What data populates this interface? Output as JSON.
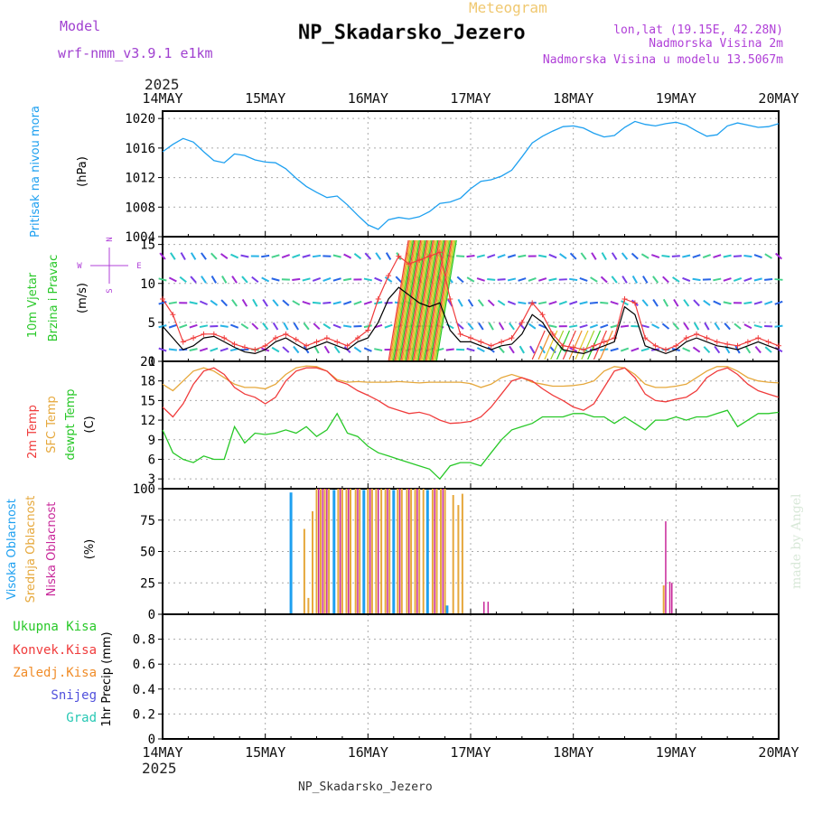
{
  "header": {
    "model_label": "Model",
    "model_name": "wrf-nmm_v3.9.1 e1km",
    "meteogram_label": "Meteogram",
    "station_title": "NP_Skadarsko_Jezero",
    "coords": "lon,lat (19.15E, 42.28N)",
    "altitude": "Nadmorska Visina 2m",
    "model_altitude": "Nadmorska Visina u modelu 13.5067m"
  },
  "axis": {
    "year_top": "2025",
    "year_bottom": "2025",
    "dates": [
      "14MAY",
      "15MAY",
      "16MAY",
      "17MAY",
      "18MAY",
      "19MAY",
      "20MAY"
    ]
  },
  "footer": {
    "station": "NP_Skadarsko_Jezero"
  },
  "watermark": "made by Angel",
  "colors": {
    "pressure": "#1ea0f0",
    "temp2m": "#f03c3c",
    "sfc_temp": "#e6a83c",
    "dewpt": "#28c828",
    "high_cloud": "#1ea0f0",
    "mid_cloud": "#e6a83c",
    "low_cloud": "#c8289a",
    "total_precip": "#28c828",
    "conv_precip": "#f03c3c",
    "frozen_precip": "#f08c28",
    "snow": "#5050dc",
    "graupel": "#28c8b4"
  },
  "chart_data": [
    {
      "type": "line",
      "panel": "pressure",
      "ylabels": [
        "Pritisak na nivou mora",
        "(hPa)"
      ],
      "ylim": [
        1004,
        1021
      ],
      "yticks": [
        1004,
        1008,
        1012,
        1016,
        1020
      ],
      "x_unit": "days from 14MAY 00Z",
      "series": [
        {
          "x": [
            0,
            0.1,
            0.2,
            0.3,
            0.4,
            0.5,
            0.6,
            0.7,
            0.8,
            0.9,
            1.0,
            1.1,
            1.2,
            1.3,
            1.4,
            1.5,
            1.6,
            1.7,
            1.8,
            1.9,
            2.0,
            2.1,
            2.2,
            2.3,
            2.4,
            2.5,
            2.6,
            2.7,
            2.8,
            2.9,
            3.0,
            3.1,
            3.2,
            3.3,
            3.4,
            3.5,
            3.6,
            3.7,
            3.8,
            3.9,
            4.0,
            4.1,
            4.2,
            4.3,
            4.4,
            4.5,
            4.6,
            4.7,
            4.8,
            4.9,
            5.0,
            5.1,
            5.2,
            5.3,
            5.4,
            5.5,
            5.6,
            5.7,
            5.8,
            5.9,
            6.0
          ],
          "values": [
            1015.5,
            1016.5,
            1017.3,
            1016.8,
            1015.5,
            1014.3,
            1014.0,
            1015.2,
            1015.0,
            1014.4,
            1014.1,
            1014.0,
            1013.2,
            1011.9,
            1010.8,
            1010.0,
            1009.3,
            1009.5,
            1008.3,
            1006.9,
            1005.6,
            1005.0,
            1006.3,
            1006.6,
            1006.4,
            1006.7,
            1007.4,
            1008.5,
            1008.7,
            1009.2,
            1010.5,
            1011.5,
            1011.7,
            1012.2,
            1013.0,
            1014.8,
            1016.7,
            1017.6,
            1018.3,
            1018.9,
            1019.0,
            1018.7,
            1018.0,
            1017.5,
            1017.7,
            1018.8,
            1019.6,
            1019.2,
            1019.0,
            1019.3,
            1019.5,
            1019.1,
            1018.3,
            1017.6,
            1017.8,
            1019.0,
            1019.4,
            1019.1,
            1018.8,
            1018.9,
            1019.3
          ]
        }
      ]
    },
    {
      "type": "line",
      "panel": "wind",
      "ylabels": [
        "10m Vjetar",
        "Brzina i Pravac",
        "(m/s)"
      ],
      "compass_labels": [
        "N",
        "S",
        "W",
        "E"
      ],
      "ylim": [
        0,
        16
      ],
      "yticks": [
        0,
        5,
        10,
        15
      ],
      "x_unit": "days from 14MAY 00Z",
      "series": [
        {
          "name": "speed",
          "x": [
            0,
            0.1,
            0.2,
            0.3,
            0.4,
            0.5,
            0.6,
            0.7,
            0.8,
            0.9,
            1.0,
            1.1,
            1.2,
            1.3,
            1.4,
            1.5,
            1.6,
            1.7,
            1.8,
            1.9,
            2.0,
            2.1,
            2.2,
            2.3,
            2.4,
            2.5,
            2.6,
            2.7,
            2.8,
            2.9,
            3.0,
            3.1,
            3.2,
            3.3,
            3.4,
            3.5,
            3.6,
            3.7,
            3.8,
            3.9,
            4.0,
            4.1,
            4.2,
            4.3,
            4.4,
            4.5,
            4.6,
            4.7,
            4.8,
            4.9,
            5.0,
            5.1,
            5.2,
            5.3,
            5.4,
            5.5,
            5.6,
            5.7,
            5.8,
            5.9,
            6.0
          ],
          "values": [
            4.5,
            3.0,
            1.5,
            2.0,
            3.0,
            3.2,
            2.5,
            1.8,
            1.2,
            1.0,
            1.5,
            2.5,
            3.0,
            2.2,
            1.5,
            2.0,
            2.5,
            2.0,
            1.5,
            2.5,
            3.0,
            5.0,
            8.0,
            9.5,
            8.5,
            7.5,
            7.0,
            7.5,
            4.0,
            2.5,
            2.5,
            2.0,
            1.5,
            2.0,
            2.2,
            3.5,
            6.0,
            5.0,
            3.0,
            1.5,
            1.2,
            1.0,
            1.5,
            2.0,
            2.5,
            7.0,
            6.0,
            2.0,
            1.5,
            1.0,
            1.5,
            2.5,
            3.0,
            2.5,
            2.0,
            1.8,
            1.5,
            2.0,
            2.5,
            2.0,
            1.5
          ]
        },
        {
          "name": "gust",
          "x": [
            0,
            0.1,
            0.2,
            0.3,
            0.4,
            0.5,
            0.6,
            0.7,
            0.8,
            0.9,
            1.0,
            1.1,
            1.2,
            1.3,
            1.4,
            1.5,
            1.6,
            1.7,
            1.8,
            1.9,
            2.0,
            2.1,
            2.2,
            2.3,
            2.4,
            2.5,
            2.6,
            2.7,
            2.8,
            2.9,
            3.0,
            3.1,
            3.2,
            3.3,
            3.4,
            3.5,
            3.6,
            3.7,
            3.8,
            3.9,
            4.0,
            4.1,
            4.2,
            4.3,
            4.4,
            4.5,
            4.6,
            4.7,
            4.8,
            4.9,
            5.0,
            5.1,
            5.2,
            5.3,
            5.4,
            5.5,
            5.6,
            5.7,
            5.8,
            5.9,
            6.0
          ],
          "values": [
            8.0,
            6.0,
            2.5,
            3.0,
            3.5,
            3.5,
            3.0,
            2.2,
            1.8,
            1.5,
            2.0,
            3.0,
            3.5,
            2.8,
            2.0,
            2.5,
            3.0,
            2.5,
            2.0,
            3.0,
            4.0,
            8.0,
            11.0,
            13.5,
            12.5,
            13.0,
            13.5,
            14.0,
            8.0,
            3.5,
            3.0,
            2.5,
            2.0,
            2.5,
            3.0,
            5.0,
            7.5,
            6.0,
            3.5,
            2.0,
            1.8,
            1.5,
            2.0,
            2.5,
            3.0,
            8.0,
            7.5,
            3.0,
            2.0,
            1.5,
            2.0,
            3.0,
            3.5,
            3.0,
            2.5,
            2.2,
            2.0,
            2.5,
            3.0,
            2.5,
            2.0
          ]
        }
      ]
    },
    {
      "type": "line",
      "panel": "temperature",
      "ylabels": [
        "2m Temp",
        "SFC Temp",
        "dewpt Temp",
        "(C)"
      ],
      "ylim": [
        1.5,
        21
      ],
      "yticks": [
        3,
        6,
        9,
        12,
        15,
        18,
        21
      ],
      "x_unit": "days from 14MAY 00Z",
      "series": [
        {
          "name": "2m Temp",
          "x": [
            0,
            0.1,
            0.2,
            0.3,
            0.4,
            0.5,
            0.6,
            0.7,
            0.8,
            0.9,
            1.0,
            1.1,
            1.2,
            1.3,
            1.4,
            1.5,
            1.6,
            1.7,
            1.8,
            1.9,
            2.0,
            2.1,
            2.2,
            2.3,
            2.4,
            2.5,
            2.6,
            2.7,
            2.8,
            2.9,
            3.0,
            3.1,
            3.2,
            3.3,
            3.4,
            3.5,
            3.6,
            3.7,
            3.8,
            3.9,
            4.0,
            4.1,
            4.2,
            4.3,
            4.4,
            4.5,
            4.6,
            4.7,
            4.8,
            4.9,
            5.0,
            5.1,
            5.2,
            5.3,
            5.4,
            5.5,
            5.6,
            5.7,
            5.8,
            5.9,
            6.0
          ],
          "values": [
            14.0,
            12.5,
            14.5,
            17.5,
            19.5,
            20.0,
            19.0,
            17.0,
            16.0,
            15.5,
            14.5,
            15.5,
            18.0,
            19.5,
            20.0,
            20.0,
            19.5,
            18.0,
            17.5,
            16.5,
            15.8,
            15.0,
            14.0,
            13.5,
            13.0,
            13.2,
            12.8,
            12.0,
            11.5,
            11.6,
            11.8,
            12.5,
            14.0,
            16.0,
            18.0,
            18.5,
            18.0,
            16.8,
            15.8,
            15.0,
            14.0,
            13.5,
            14.5,
            17.0,
            19.5,
            20.0,
            18.5,
            16.0,
            15.0,
            14.8,
            15.2,
            15.5,
            16.5,
            18.5,
            19.5,
            20.0,
            19.0,
            17.5,
            16.5,
            16.0,
            15.5
          ]
        },
        {
          "name": "SFC Temp",
          "x": [
            0,
            0.1,
            0.2,
            0.3,
            0.4,
            0.5,
            0.6,
            0.7,
            0.8,
            0.9,
            1.0,
            1.1,
            1.2,
            1.3,
            1.4,
            1.5,
            1.6,
            1.7,
            1.8,
            1.9,
            2.0,
            2.1,
            2.2,
            2.3,
            2.4,
            2.5,
            2.6,
            2.7,
            2.8,
            2.9,
            3.0,
            3.1,
            3.2,
            3.3,
            3.4,
            3.5,
            3.6,
            3.7,
            3.8,
            3.9,
            4.0,
            4.1,
            4.2,
            4.3,
            4.4,
            4.5,
            4.6,
            4.7,
            4.8,
            4.9,
            5.0,
            5.1,
            5.2,
            5.3,
            5.4,
            5.5,
            5.6,
            5.7,
            5.8,
            5.9,
            6.0
          ],
          "values": [
            17.5,
            16.5,
            18.0,
            19.5,
            20.0,
            19.5,
            18.5,
            17.5,
            17.0,
            17.0,
            16.8,
            17.5,
            19.0,
            20.0,
            20.3,
            20.2,
            19.5,
            18.2,
            17.8,
            17.9,
            17.8,
            17.8,
            17.8,
            17.9,
            17.8,
            17.7,
            17.8,
            17.8,
            17.8,
            17.8,
            17.6,
            17.0,
            17.5,
            18.5,
            19.0,
            18.5,
            17.8,
            17.5,
            17.2,
            17.2,
            17.3,
            17.5,
            18.0,
            19.5,
            20.2,
            20.0,
            19.0,
            17.5,
            17.0,
            17.0,
            17.2,
            17.5,
            18.5,
            19.5,
            20.2,
            20.2,
            19.5,
            18.5,
            18.0,
            17.8,
            17.7
          ]
        },
        {
          "name": "dewpt Temp",
          "x": [
            0,
            0.1,
            0.2,
            0.3,
            0.4,
            0.5,
            0.6,
            0.7,
            0.8,
            0.9,
            1.0,
            1.1,
            1.2,
            1.3,
            1.4,
            1.5,
            1.6,
            1.7,
            1.8,
            1.9,
            2.0,
            2.1,
            2.2,
            2.3,
            2.4,
            2.5,
            2.6,
            2.7,
            2.8,
            2.9,
            3.0,
            3.1,
            3.2,
            3.3,
            3.4,
            3.5,
            3.6,
            3.7,
            3.8,
            3.9,
            4.0,
            4.1,
            4.2,
            4.3,
            4.4,
            4.5,
            4.6,
            4.7,
            4.8,
            4.9,
            5.0,
            5.1,
            5.2,
            5.3,
            5.4,
            5.5,
            5.6,
            5.7,
            5.8,
            5.9,
            6.0
          ],
          "values": [
            10.5,
            7.0,
            6.0,
            5.5,
            6.5,
            6.0,
            6.0,
            11.0,
            8.5,
            10.0,
            9.8,
            10.0,
            10.5,
            10.0,
            11.0,
            9.5,
            10.5,
            13.0,
            10.0,
            9.5,
            8.0,
            7.0,
            6.5,
            6.0,
            5.5,
            5.0,
            4.5,
            3.0,
            5.0,
            5.5,
            5.5,
            5.0,
            7.0,
            9.0,
            10.5,
            11.0,
            11.5,
            12.5,
            12.5,
            12.5,
            13.0,
            13.0,
            12.5,
            12.5,
            11.5,
            12.5,
            11.5,
            10.5,
            12.0,
            12.0,
            12.5,
            12.0,
            12.5,
            12.5,
            13.0,
            13.5,
            11.0,
            12.0,
            13.0,
            13.0,
            13.2
          ]
        }
      ]
    },
    {
      "type": "bar",
      "panel": "cloud",
      "ylabels": [
        "Visoka Oblacnost",
        "Srednja Oblacnost",
        "Niska Oblacnost",
        "(%)"
      ],
      "ylim": [
        0,
        100
      ],
      "yticks": [
        0,
        25,
        50,
        75,
        100
      ],
      "x_unit": "days from 14MAY 00Z",
      "series": [
        {
          "name": "Visoka Oblacnost",
          "x": [
            1.25,
            1.67,
            1.96,
            2.25,
            2.58,
            2.77
          ],
          "values": [
            97,
            99,
            99,
            99,
            99,
            7
          ]
        },
        {
          "name": "Srednja Oblacnost",
          "x": [
            1.38,
            1.42,
            1.46,
            1.5,
            1.54,
            1.58,
            1.62,
            1.71,
            1.75,
            1.79,
            1.83,
            1.88,
            1.92,
            2.0,
            2.04,
            2.08,
            2.13,
            2.17,
            2.21,
            2.29,
            2.33,
            2.38,
            2.42,
            2.46,
            2.5,
            2.54,
            2.63,
            2.67,
            2.71,
            2.75,
            2.83,
            2.88,
            2.92,
            4.88
          ],
          "values": [
            68,
            13,
            82,
            100,
            100,
            100,
            100,
            100,
            100,
            100,
            100,
            100,
            100,
            100,
            100,
            100,
            100,
            100,
            100,
            100,
            100,
            100,
            100,
            100,
            100,
            100,
            100,
            100,
            100,
            100,
            95,
            87,
            96,
            23
          ]
        },
        {
          "name": "Niska Oblacnost",
          "x": [
            1.52,
            1.56,
            1.6,
            1.73,
            1.81,
            1.9,
            2.02,
            2.1,
            2.19,
            2.31,
            2.4,
            2.48,
            2.65,
            2.73,
            3.13,
            3.17,
            4.9,
            4.94,
            4.96
          ],
          "values": [
            100,
            100,
            100,
            100,
            100,
            100,
            100,
            100,
            100,
            100,
            100,
            100,
            100,
            100,
            10,
            10,
            74,
            26,
            25
          ]
        }
      ]
    },
    {
      "type": "bar",
      "panel": "precip",
      "ylabels": [
        "Ukupna Kisa",
        "Konvek.Kisa",
        "Zaledj.Kisa",
        "Snijeg",
        "Grad",
        "1hr Precip (mm)"
      ],
      "ylim": [
        0,
        1
      ],
      "yticks": [
        0,
        0.2,
        0.4,
        0.6,
        0.8
      ],
      "series": []
    }
  ]
}
